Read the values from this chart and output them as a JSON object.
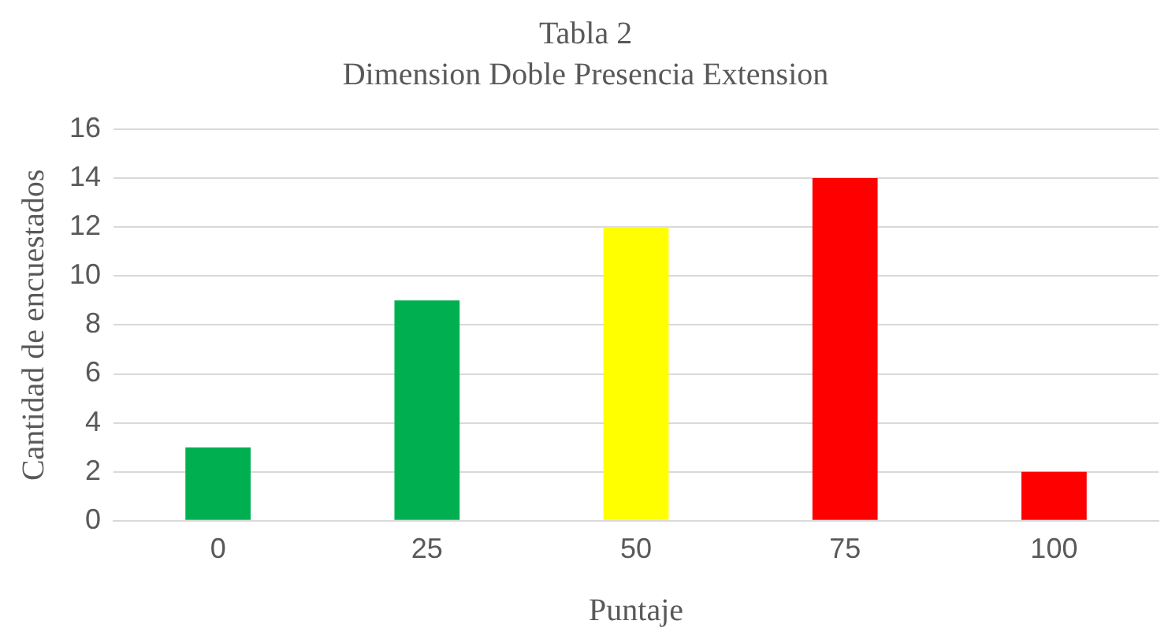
{
  "chart_data": {
    "type": "bar",
    "title": "Tabla 2",
    "subtitle": "Dimension Doble Presencia Extension",
    "xlabel": "Puntaje",
    "ylabel": "Cantidad de encuestados",
    "categories": [
      "0",
      "25",
      "50",
      "75",
      "100"
    ],
    "values": [
      3,
      9,
      12,
      14,
      2
    ],
    "colors": [
      "#00b050",
      "#00b050",
      "#ffff00",
      "#ff0000",
      "#ff0000"
    ],
    "ylim": [
      0,
      16
    ],
    "yticks": [
      0,
      2,
      4,
      6,
      8,
      10,
      12,
      14,
      16
    ],
    "grid": "y",
    "legend": false
  }
}
